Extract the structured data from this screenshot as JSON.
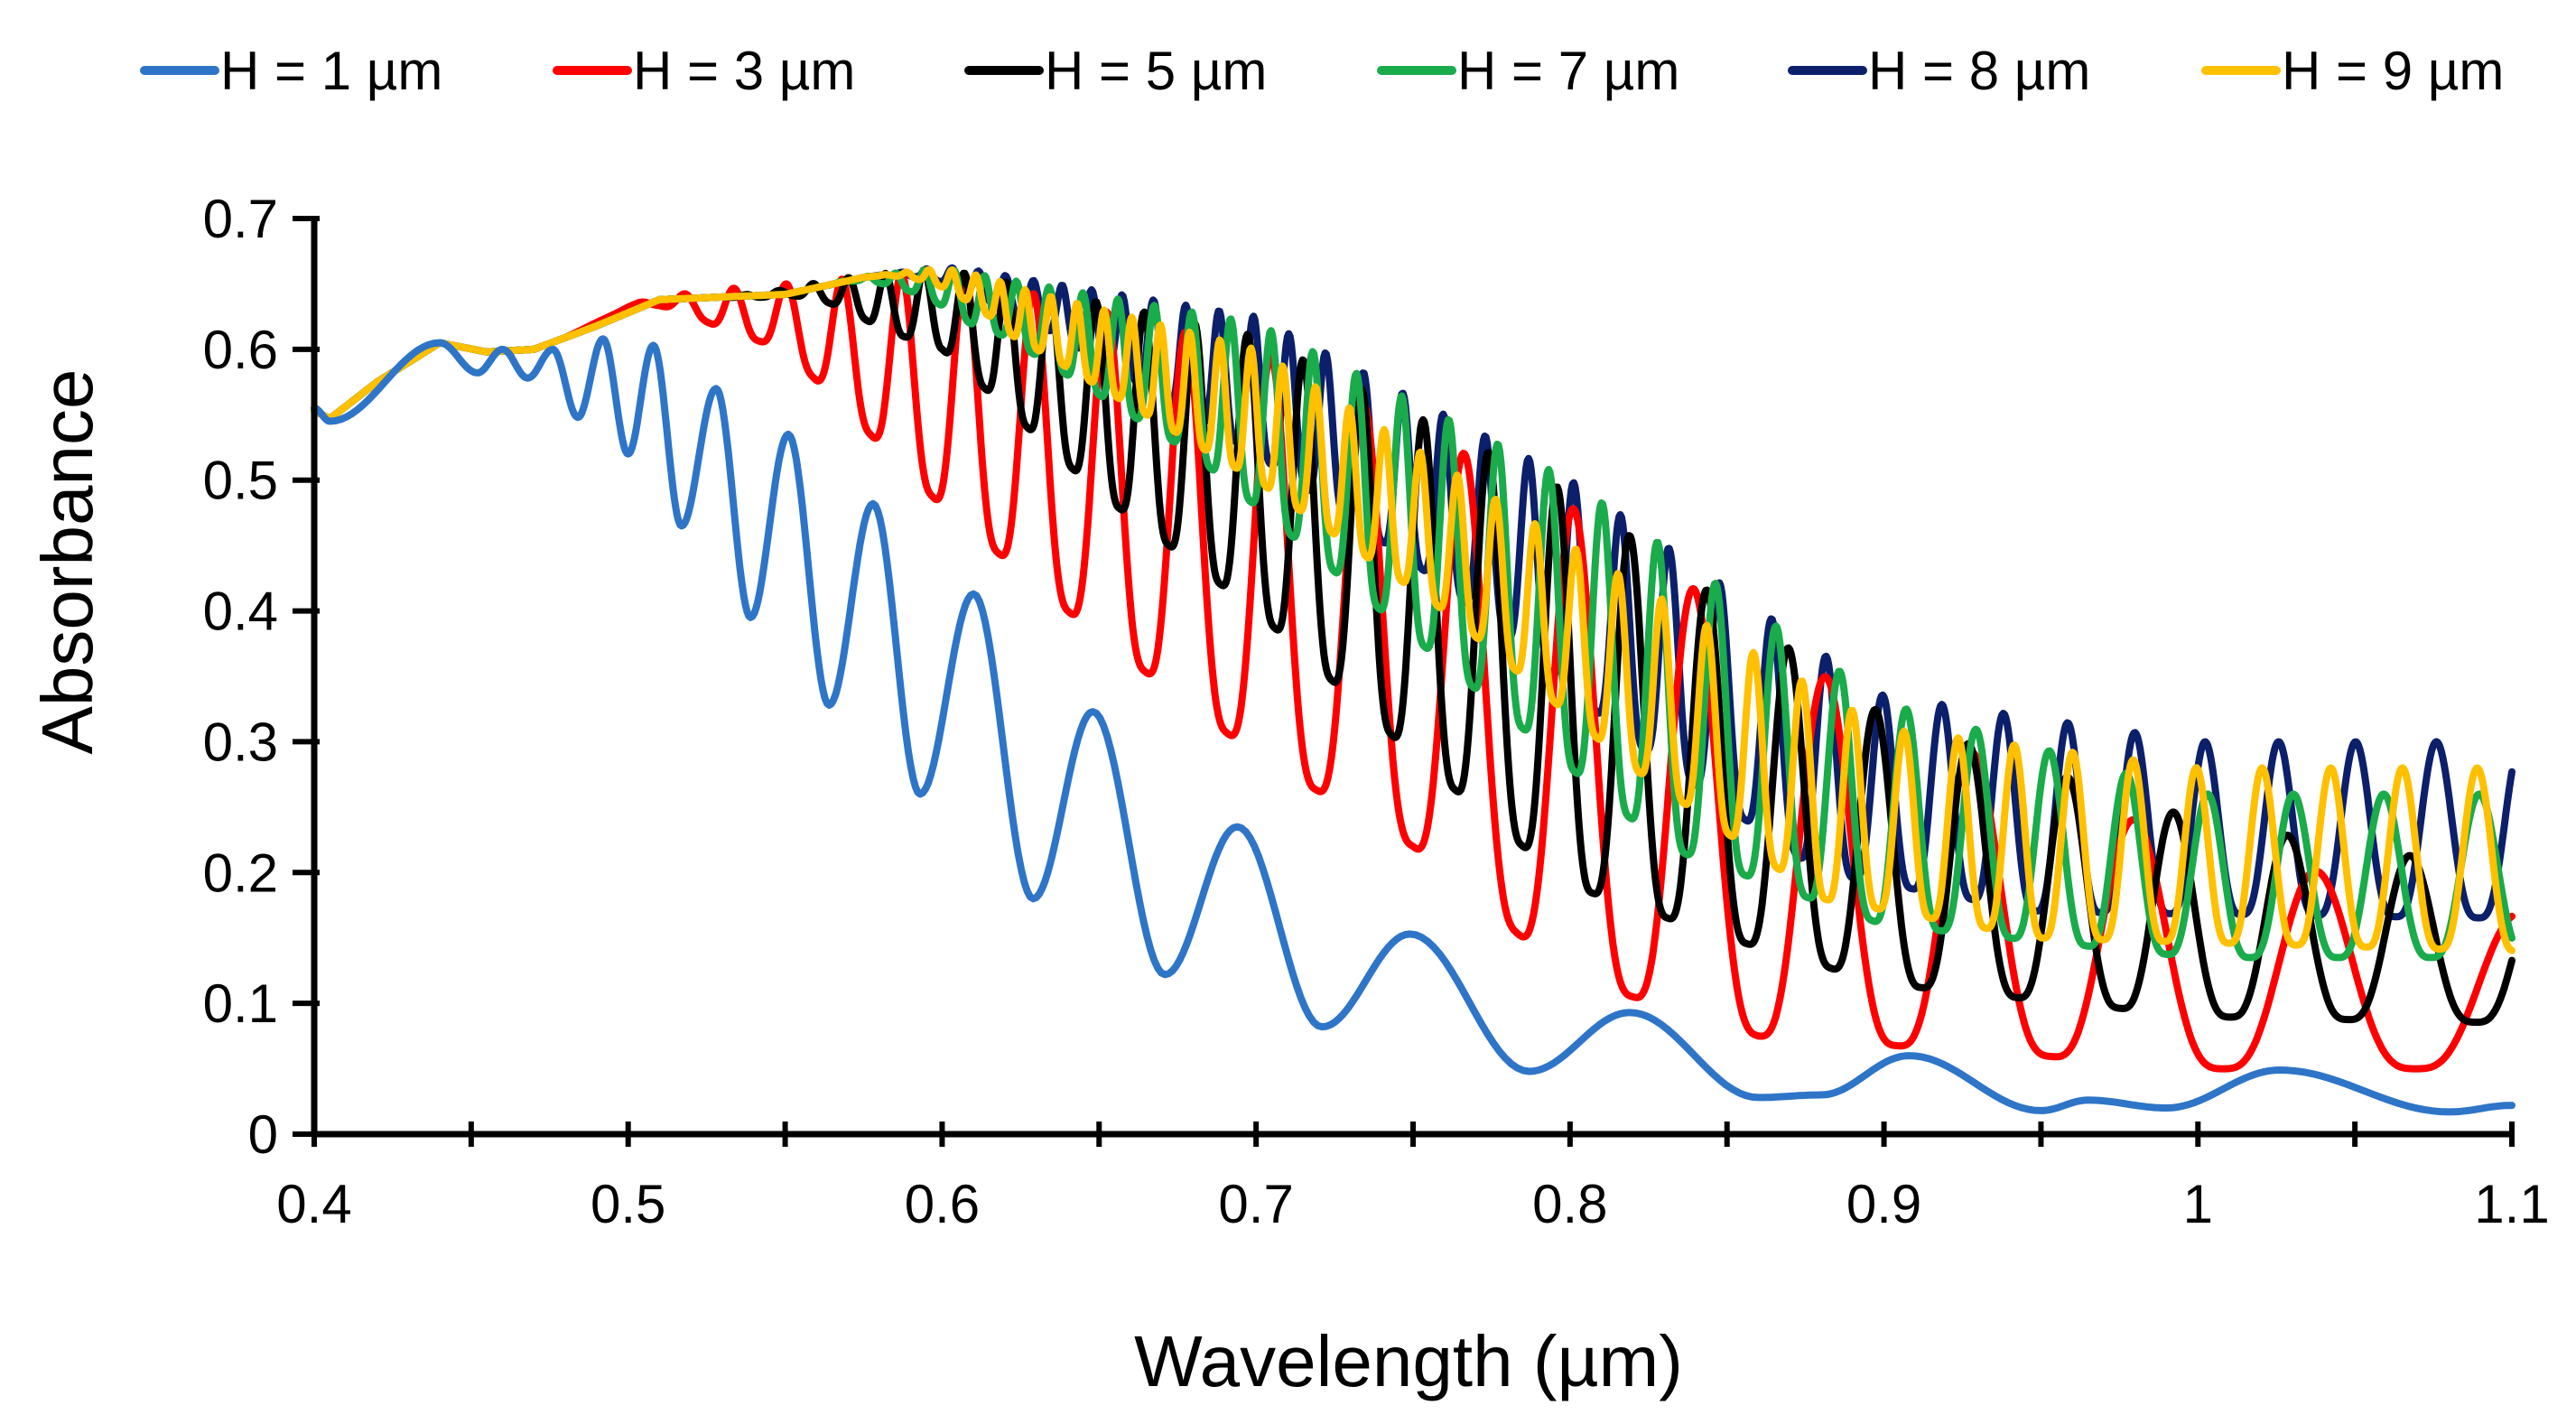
{
  "chart_data": {
    "type": "line",
    "title": "",
    "xlabel": "Wavelength (µm)",
    "ylabel": "Absorbance",
    "xlim": [
      0.4,
      1.1
    ],
    "ylim": [
      0,
      0.7
    ],
    "x_ticks": [
      "0.4",
      "0.5",
      "0.6",
      "0.7",
      "0.8",
      "0.9",
      "1",
      "1.1"
    ],
    "x_tick_values": [
      0.4,
      0.5,
      0.6,
      0.7,
      0.8,
      0.9,
      1.0,
      1.1
    ],
    "y_ticks": [
      "0",
      "0.1",
      "0.2",
      "0.3",
      "0.4",
      "0.5",
      "0.6",
      "0.7"
    ],
    "y_tick_values": [
      0,
      0.1,
      0.2,
      0.3,
      0.4,
      0.5,
      0.6,
      0.7
    ],
    "grid": false,
    "legend_position": "top",
    "series": [
      {
        "name": "H = 1 µm",
        "color": "#2e75c8",
        "peaks": [
          [
            0.4,
            0.555
          ],
          [
            0.44,
            0.605
          ],
          [
            0.46,
            0.6
          ],
          [
            0.476,
            0.6
          ],
          [
            0.492,
            0.608
          ],
          [
            0.508,
            0.603
          ],
          [
            0.528,
            0.57
          ],
          [
            0.551,
            0.535
          ],
          [
            0.578,
            0.482
          ],
          [
            0.61,
            0.413
          ],
          [
            0.648,
            0.323
          ],
          [
            0.694,
            0.235
          ],
          [
            0.749,
            0.153
          ],
          [
            0.819,
            0.093
          ],
          [
            0.908,
            0.06
          ],
          [
            0.965,
            0.026
          ],
          [
            1.026,
            0.049
          ],
          [
            1.1,
            0.022
          ]
        ],
        "troughs": [
          [
            0.405,
            0.545
          ],
          [
            0.452,
            0.582
          ],
          [
            0.468,
            0.578
          ],
          [
            0.484,
            0.548
          ],
          [
            0.5,
            0.52
          ],
          [
            0.517,
            0.465
          ],
          [
            0.539,
            0.395
          ],
          [
            0.564,
            0.328
          ],
          [
            0.593,
            0.26
          ],
          [
            0.629,
            0.18
          ],
          [
            0.671,
            0.122
          ],
          [
            0.721,
            0.082
          ],
          [
            0.787,
            0.048
          ],
          [
            0.86,
            0.028
          ],
          [
            0.88,
            0.03
          ],
          [
            0.95,
            0.018
          ],
          [
            0.99,
            0.02
          ],
          [
            1.08,
            0.017
          ]
        ]
      },
      {
        "name": "H = 3 µm",
        "color": "#ff0000"
      },
      {
        "name": "H = 5 µm",
        "color": "#000000"
      },
      {
        "name": "H = 7 µm",
        "color": "#1aab4b"
      },
      {
        "name": "H = 8 µm",
        "color": "#0b1f6b"
      },
      {
        "name": "H = 9 µm",
        "color": "#ffc000"
      }
    ]
  }
}
